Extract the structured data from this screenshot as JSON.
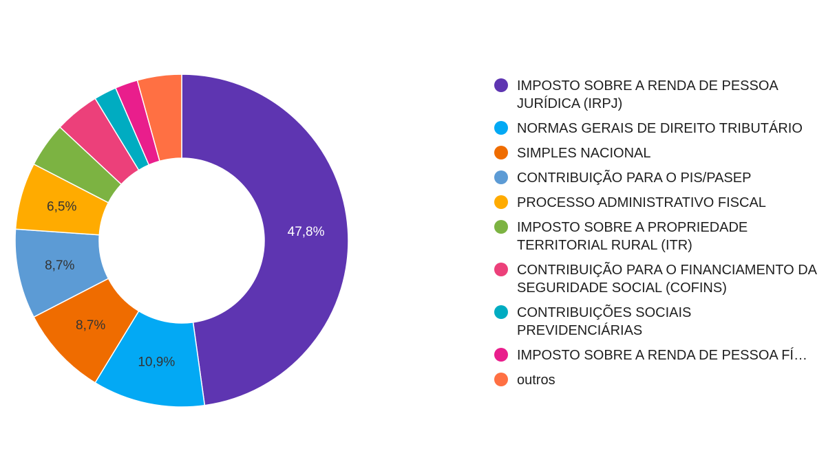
{
  "chart_data": {
    "type": "pie",
    "variant": "donut",
    "legend_position": "right",
    "slices": [
      {
        "label": "IMPOSTO SOBRE A RENDA DE PESSOA JURÍDICA (IRPJ)",
        "value": 47.8,
        "value_label": "47,8%",
        "color": "#5e35b1",
        "label_color": "#ffffff"
      },
      {
        "label": "NORMAS GERAIS DE DIREITO TRIBUTÁRIO",
        "value": 10.9,
        "value_label": "10,9%",
        "color": "#03a9f4",
        "label_color": "#333333"
      },
      {
        "label": "SIMPLES NACIONAL",
        "value": 8.7,
        "value_label": "8,7%",
        "color": "#ef6c00",
        "label_color": "#333333"
      },
      {
        "label": "CONTRIBUIÇÃO PARA O PIS/PASEP",
        "value": 8.7,
        "value_label": "8,7%",
        "color": "#5c9bd5",
        "label_color": "#333333"
      },
      {
        "label": "PROCESSO ADMINISTRATIVO FISCAL",
        "value": 6.5,
        "value_label": "6,5%",
        "color": "#ffab00",
        "label_color": "#333333"
      },
      {
        "label": "IMPOSTO SOBRE A PROPRIEDADE TERRITORIAL RURAL (ITR)",
        "value": 4.35,
        "value_label": "",
        "color": "#7cb342",
        "label_color": "#333333"
      },
      {
        "label": "CONTRIBUIÇÃO PARA O FINANCIAMENTO DA SEGURIDADE SOCIAL (COFINS)",
        "value": 4.35,
        "value_label": "",
        "color": "#ec407a",
        "label_color": "#333333"
      },
      {
        "label": "CONTRIBUIÇÕES SOCIAIS PREVIDENCIÁRIAS",
        "value": 2.2,
        "value_label": "",
        "color": "#00acc1",
        "label_color": "#333333"
      },
      {
        "label": "IMPOSTO SOBRE A RENDA DE PESSOA FÍ…",
        "value": 2.2,
        "value_label": "",
        "color": "#e91e8c",
        "label_color": "#333333"
      },
      {
        "label": "outros",
        "value": 4.3,
        "value_label": "",
        "color": "#ff7043",
        "label_color": "#333333"
      }
    ]
  }
}
